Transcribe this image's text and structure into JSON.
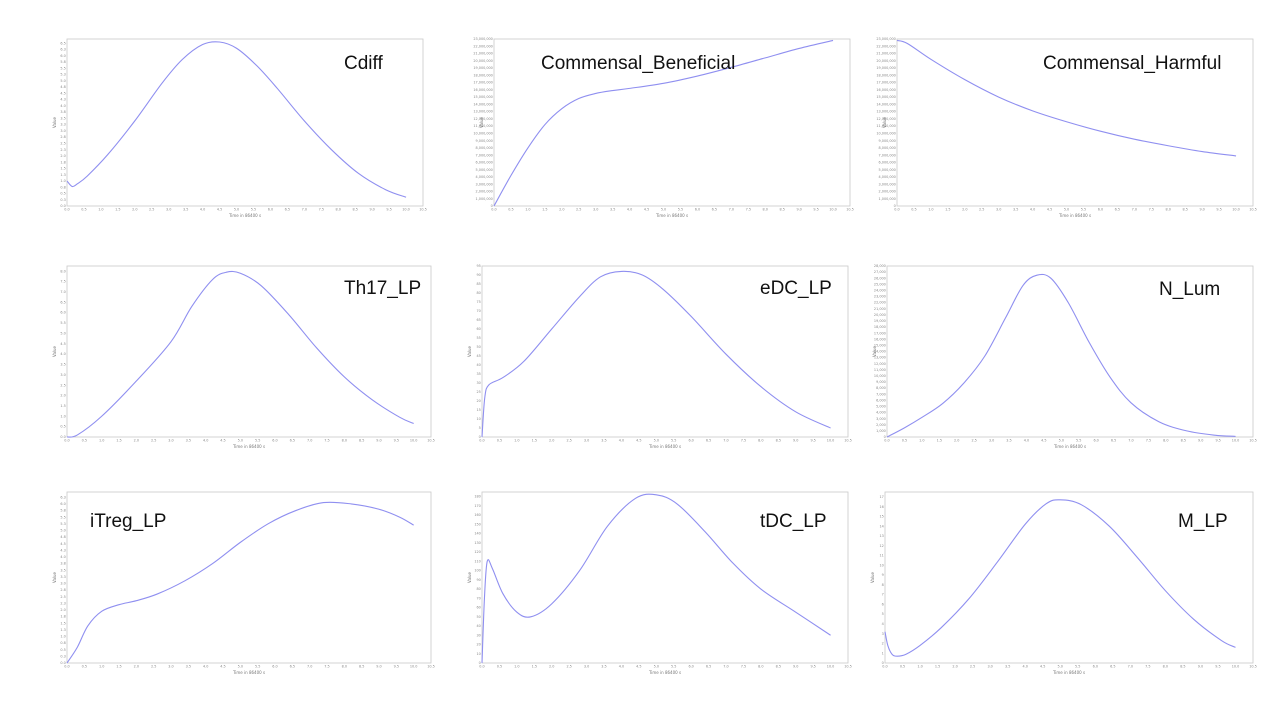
{
  "colors": {
    "line": "#8f8ff0",
    "frame": "#c9c9c9",
    "background": "#ffffff"
  },
  "chart_data": [
    {
      "type": "line",
      "title": "Cdiff",
      "xlabel": "Time in 86400 s",
      "ylabel": "Value",
      "xlim": [
        0,
        10.5
      ],
      "ylim": [
        0,
        6.67
      ],
      "x": [
        0,
        0.15,
        0.3,
        0.6,
        1.2,
        2.0,
        2.8,
        3.4,
        4.0,
        4.5,
        5.0,
        5.6,
        6.2,
        7.0,
        7.8,
        8.6,
        9.4,
        10.0
      ],
      "y": [
        1.0,
        0.78,
        0.88,
        1.2,
        2.05,
        3.4,
        4.9,
        5.85,
        6.45,
        6.55,
        6.3,
        5.6,
        4.7,
        3.4,
        2.25,
        1.3,
        0.65,
        0.35
      ]
    },
    {
      "type": "line",
      "title": "Commensal_Beneficial",
      "xlabel": "Time in 86400 s",
      "ylabel": "Value",
      "xlim": [
        0,
        10.5
      ],
      "ylim": [
        0,
        23000000
      ],
      "x": [
        0,
        0.5,
        1.0,
        1.5,
        2.0,
        2.5,
        3.0,
        3.5,
        4.0,
        5.0,
        6.0,
        7.0,
        8.0,
        9.0,
        10.0
      ],
      "y": [
        0,
        4200000,
        8000000,
        11200000,
        13400000,
        14800000,
        15500000,
        15900000,
        16200000,
        16900000,
        17900000,
        19100000,
        20400000,
        21700000,
        22800000
      ]
    },
    {
      "type": "line",
      "title": "Commensal_Harmful",
      "xlabel": "Time in 86400 s",
      "ylabel": "Value",
      "xlim": [
        0,
        10.5
      ],
      "ylim": [
        0,
        23000000
      ],
      "x": [
        0,
        0.3,
        1.0,
        2.0,
        3.0,
        4.0,
        5.0,
        6.0,
        7.0,
        8.0,
        9.0,
        10.0
      ],
      "y": [
        22800000,
        22400000,
        20200000,
        17400000,
        15000000,
        13100000,
        11600000,
        10300000,
        9200000,
        8300000,
        7500000,
        6900000
      ]
    },
    {
      "type": "line",
      "title": "Th17_LP",
      "xlabel": "Time in 86400 s",
      "ylabel": "Value",
      "xlim": [
        0,
        10.5
      ],
      "ylim": [
        0,
        8.25
      ],
      "x": [
        0,
        0.3,
        1.0,
        2.0,
        3.0,
        3.6,
        4.2,
        4.6,
        5.0,
        5.6,
        6.4,
        7.2,
        8.0,
        8.8,
        9.6,
        10.0
      ],
      "y": [
        0,
        0.1,
        1.0,
        2.7,
        4.6,
        6.3,
        7.6,
        7.95,
        7.9,
        7.3,
        5.9,
        4.3,
        2.9,
        1.8,
        0.95,
        0.65
      ]
    },
    {
      "type": "line",
      "title": "eDC_LP",
      "xlabel": "Time in 86400 s",
      "ylabel": "Value",
      "xlim": [
        0,
        10.5
      ],
      "ylim": [
        0,
        95
      ],
      "x": [
        0,
        0.08,
        0.2,
        0.6,
        1.2,
        2.0,
        2.8,
        3.4,
        4.0,
        4.6,
        5.2,
        6.0,
        7.0,
        8.0,
        9.0,
        10.0
      ],
      "y": [
        0,
        22,
        29,
        33,
        42,
        60,
        78,
        89,
        92,
        90,
        82,
        67,
        46,
        28,
        14,
        5
      ]
    },
    {
      "type": "line",
      "title": "N_Lum",
      "xlabel": "Time in 86400 s",
      "ylabel": "Value",
      "xlim": [
        0,
        10.5
      ],
      "ylim": [
        0,
        28000
      ],
      "x": [
        0,
        0.5,
        1.0,
        1.6,
        2.2,
        2.8,
        3.4,
        3.9,
        4.3,
        4.7,
        5.2,
        5.8,
        6.4,
        7.0,
        7.8,
        8.6,
        9.4,
        10.0
      ],
      "y": [
        0,
        1500,
        3200,
        5500,
        8800,
        13200,
        19500,
        24800,
        26500,
        26000,
        22000,
        15500,
        9800,
        5600,
        2500,
        1000,
        300,
        100
      ]
    },
    {
      "type": "line",
      "title": "iTreg_LP",
      "xlabel": "Time in 86400 s",
      "ylabel": "Value",
      "xlim": [
        0,
        10.5
      ],
      "ylim": [
        0,
        6.45
      ],
      "x": [
        0,
        0.3,
        0.6,
        1.0,
        1.5,
        2.0,
        2.6,
        3.4,
        4.2,
        5.0,
        5.8,
        6.6,
        7.4,
        8.2,
        9.0,
        9.6,
        10.0
      ],
      "y": [
        0,
        0.6,
        1.4,
        1.95,
        2.2,
        2.35,
        2.6,
        3.1,
        3.75,
        4.55,
        5.25,
        5.75,
        6.05,
        6.0,
        5.8,
        5.5,
        5.2
      ]
    },
    {
      "type": "line",
      "title": "tDC_LP",
      "xlabel": "Time in 86400 s",
      "ylabel": "Value",
      "xlim": [
        0,
        10.5
      ],
      "ylim": [
        0,
        185
      ],
      "x": [
        0,
        0.07,
        0.15,
        0.3,
        0.6,
        1.0,
        1.4,
        2.0,
        2.8,
        3.6,
        4.4,
        5.0,
        5.6,
        6.4,
        7.2,
        8.0,
        9.0,
        10.0
      ],
      "y": [
        0,
        70,
        110,
        102,
        75,
        55,
        50,
        64,
        100,
        148,
        178,
        182,
        172,
        142,
        108,
        80,
        55,
        30
      ]
    },
    {
      "type": "line",
      "title": "M_LP",
      "xlabel": "Time in 86400 s",
      "ylabel": "Value",
      "xlim": [
        0,
        10.5
      ],
      "ylim": [
        0,
        17.5
      ],
      "x": [
        0,
        0.08,
        0.2,
        0.35,
        0.6,
        1.0,
        1.6,
        2.4,
        3.2,
        4.0,
        4.6,
        5.0,
        5.6,
        6.4,
        7.2,
        8.0,
        8.8,
        9.6,
        10.0
      ],
      "y": [
        3.2,
        1.8,
        0.9,
        0.7,
        0.9,
        1.8,
        3.6,
        6.6,
        10.3,
        14.2,
        16.3,
        16.7,
        16.2,
        14.0,
        10.8,
        7.4,
        4.5,
        2.3,
        1.6
      ]
    }
  ]
}
